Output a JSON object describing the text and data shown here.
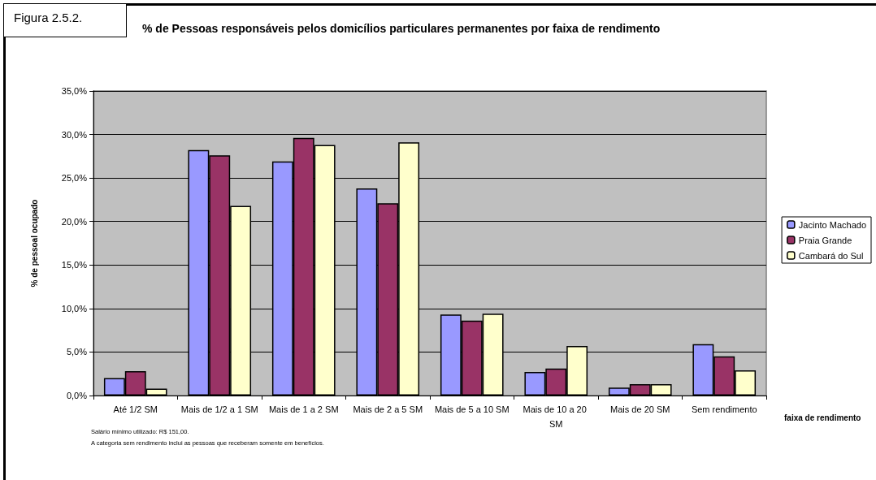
{
  "chart_data": {
    "type": "bar",
    "title": "% de Pessoas responsáveis pelos domicílios particulares permanentes por faixa de rendimento",
    "xlabel": "faixa de rendimento",
    "ylabel": "% de pessoal ocupado",
    "categories": [
      "Até 1/2 SM",
      "Mais de 1/2 a 1 SM",
      "Mais de 1 a 2 SM",
      "Mais de 2 a 5 SM",
      "Mais de 5 a 10 SM",
      "Mais de 10 a 20 SM",
      "Mais de 20 SM",
      "Sem rendimento"
    ],
    "series": [
      {
        "name": "Jacinto Machado",
        "color": "#9999ff",
        "values": [
          2.0,
          28.2,
          26.9,
          23.8,
          9.3,
          2.7,
          0.9,
          5.9
        ]
      },
      {
        "name": "Praia Grande",
        "color": "#993366",
        "values": [
          2.8,
          27.6,
          29.6,
          22.1,
          8.6,
          3.1,
          1.3,
          4.5
        ]
      },
      {
        "name": "Cambará do Sul",
        "color": "#ffffcc",
        "values": [
          0.8,
          21.8,
          28.8,
          29.1,
          9.4,
          5.7,
          1.3,
          2.9
        ]
      }
    ],
    "ylim": [
      0,
      35
    ],
    "yticks": [
      {
        "value": 0,
        "label": "0,0%"
      },
      {
        "value": 5,
        "label": "5,0%"
      },
      {
        "value": 10,
        "label": "10,0%"
      },
      {
        "value": 15,
        "label": "15,0%"
      },
      {
        "value": 20,
        "label": "20,0%"
      },
      {
        "value": 25,
        "label": "25,0%"
      },
      {
        "value": 30,
        "label": "30,0%"
      },
      {
        "value": 35,
        "label": "35,0%"
      }
    ],
    "grid": "y",
    "legend": "right",
    "annotations": [
      "Figura 2.5.2.",
      "Salário mínimo utilizado: R$ 151,00.",
      "A categoria sem rendimento inclui as pessoas que receberam somente em benefícios."
    ]
  }
}
